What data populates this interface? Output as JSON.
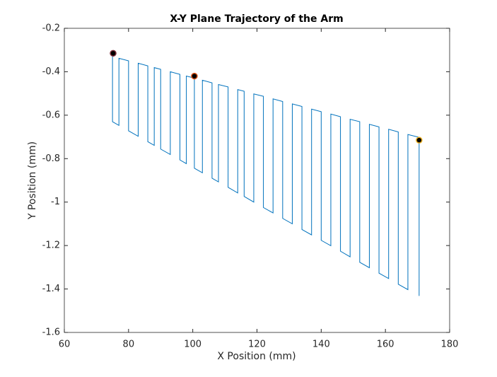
{
  "chart_data": {
    "type": "line",
    "title": "X-Y Plane Trajectory of the Arm",
    "x_label": "X Position (mm)",
    "y_label": "Y Position (mm)",
    "xlim": [
      60,
      180
    ],
    "xticks": [
      60,
      80,
      100,
      120,
      140,
      160,
      180
    ],
    "ylim": [
      -1.6,
      -0.2
    ],
    "yticks": [
      -1.6,
      -1.4,
      -1.2,
      -1,
      -0.8,
      -0.6,
      -0.4,
      -0.2
    ],
    "series": [
      {
        "color": "#0072bd",
        "x": [
          75,
          75,
          77,
          77,
          80,
          80,
          83,
          83,
          86,
          86,
          88,
          88,
          90,
          90,
          93,
          93,
          96,
          96,
          98,
          98,
          100.5,
          100.5,
          103,
          103,
          106,
          106,
          108,
          108,
          111,
          111,
          114,
          114,
          116,
          116,
          119,
          119,
          122,
          122,
          125,
          125,
          128,
          128,
          131,
          131,
          134,
          134,
          137,
          137,
          140,
          140,
          143,
          143,
          146,
          146,
          149,
          149,
          152,
          152,
          155,
          155,
          158,
          158,
          161,
          161,
          164,
          164,
          167,
          167,
          170.5,
          170.5
        ],
        "values": [
          -0.33,
          -0.63,
          -0.647,
          -0.338,
          -0.35,
          -0.672,
          -0.697,
          -0.361,
          -0.373,
          -0.722,
          -0.739,
          -0.381,
          -0.389,
          -0.756,
          -0.781,
          -0.4,
          -0.412,
          -0.806,
          -0.823,
          -0.42,
          -0.429,
          -0.844,
          -0.865,
          -0.439,
          -0.451,
          -0.89,
          -0.907,
          -0.459,
          -0.47,
          -0.932,
          -0.958,
          -0.482,
          -0.49,
          -0.974,
          -1.0,
          -0.502,
          -0.513,
          -1.025,
          -1.05,
          -0.525,
          -0.537,
          -1.075,
          -1.1,
          -0.548,
          -0.56,
          -1.126,
          -1.151,
          -0.572,
          -0.584,
          -1.176,
          -1.201,
          -0.595,
          -0.607,
          -1.226,
          -1.252,
          -0.619,
          -0.63,
          -1.277,
          -1.302,
          -0.642,
          -0.654,
          -1.327,
          -1.352,
          -0.665,
          -0.677,
          -1.378,
          -1.403,
          -0.689,
          -0.702,
          -1.432
        ]
      }
    ],
    "points": {
      "x": [
        75.2,
        100.5,
        170.5
      ],
      "values": [
        -0.315,
        -0.42,
        -0.715
      ],
      "color": "#000000",
      "edge_colors": [
        "#7e2f3e",
        "#d95319",
        "#edb120"
      ]
    }
  }
}
